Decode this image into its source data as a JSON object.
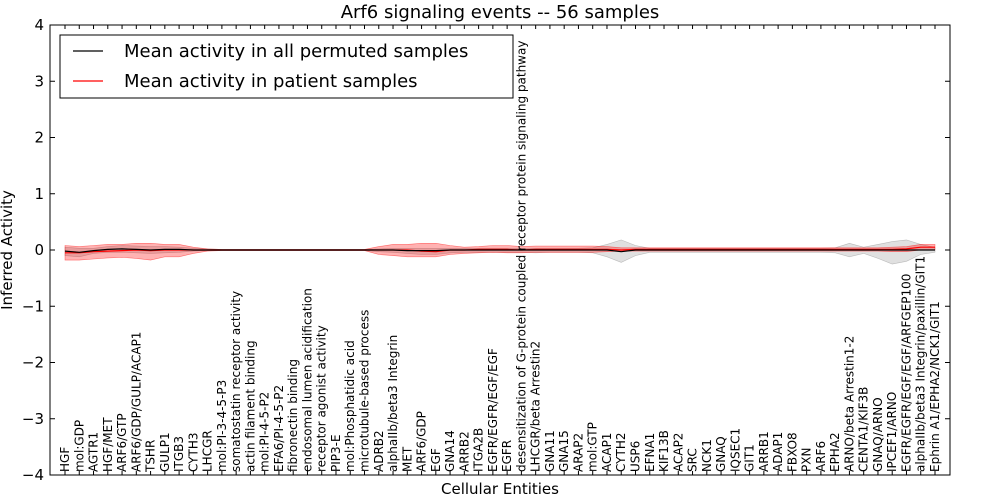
{
  "chart_data": {
    "type": "line",
    "title": "Arf6 signaling events -- 56 samples",
    "xlabel": "Cellular Entities",
    "ylabel": "Inferred Activity",
    "ylim": [
      -4,
      4
    ],
    "yticks": [
      -4,
      -3,
      -2,
      -1,
      0,
      1,
      2,
      3,
      4
    ],
    "legend_position": "top-left",
    "legend": [
      {
        "label": "Mean activity in all permuted samples",
        "color": "#000000"
      },
      {
        "label": "Mean activity in patient samples",
        "color": "#ff0000"
      }
    ],
    "categories": [
      "HGF",
      "mol:GDP",
      "AGTR1",
      "HGF/MET",
      "ARF6/GTP",
      "ARF6/GDP/GULP/ACAP1",
      "TSHR",
      "GULP1",
      "ITGB3",
      "CYTH3",
      "LHCGR",
      "mol:PI-3-4-5-P3",
      "somatostatin receptor activity",
      "actin filament binding",
      "mol:PI-4-5-P2",
      "EFA6/PI-4-5-P2",
      "fibronectin binding",
      "endosomal lumen acidification",
      "receptor agonist activity",
      "PIP3-E",
      "mol:Phosphatidic acid",
      "microtubule-based process",
      "ADRB2",
      "alphaIIb/beta3 Integrin",
      "MET",
      "ARF6/GDP",
      "EGF",
      "GNA14",
      "ARRB2",
      "ITGA2B",
      "EGFR/EGFR/EGF/EGF",
      "EGFR",
      "desensitization of G-protein coupled receptor protein signaling pathway",
      "LHCGR/beta Arrestin2",
      "GNA11",
      "GNA15",
      "ARAP2",
      "mol:GTP",
      "ACAP1",
      "CYTH2",
      "USP6",
      "EFNA1",
      "KIF13B",
      "ACAP2",
      "SRC",
      "NCK1",
      "GNAQ",
      "IQSEC1",
      "GIT1",
      "ARRB1",
      "ADAP1",
      "FBXO8",
      "PXN",
      "ARF6",
      "EPHA2",
      "ARNO/beta Arrestin1-2",
      "CENTA1/KIF3B",
      "GNAQ/ARNO",
      "IPCEF1/ARNO",
      "EGFR/EGFR/EGF/EGF/ARFGEP100",
      "alphaIIb/beta3 Integrin/paxillin/GIT1",
      "Ephrin A1/EPHA2/NCK1/GIT1"
    ],
    "series": [
      {
        "name": "Mean activity in all permuted samples",
        "color": "#000000",
        "values": [
          -0.02,
          -0.04,
          -0.01,
          0.01,
          0.02,
          0.01,
          0.0,
          0.01,
          0.01,
          0.0,
          0.0,
          0.0,
          0.0,
          0.0,
          0.0,
          0.0,
          0.0,
          0.0,
          0.0,
          0.0,
          0.0,
          0.0,
          0.0,
          0.0,
          -0.01,
          -0.01,
          -0.01,
          0.0,
          0.0,
          0.0,
          0.0,
          0.0,
          0.0,
          0.0,
          0.0,
          0.0,
          0.0,
          0.0,
          0.0,
          -0.03,
          0.0,
          0.0,
          0.0,
          0.0,
          0.0,
          0.0,
          0.0,
          0.0,
          0.0,
          0.0,
          0.0,
          0.0,
          0.0,
          0.0,
          0.0,
          0.0,
          0.0,
          0.0,
          0.0,
          0.0,
          0.0,
          0.0
        ],
        "band_upper": [
          0.05,
          0.03,
          0.03,
          0.06,
          0.08,
          0.07,
          0.06,
          0.06,
          0.05,
          0.03,
          0.02,
          0.01,
          0.01,
          0.01,
          0.01,
          0.01,
          0.01,
          0.01,
          0.01,
          0.01,
          0.01,
          0.01,
          0.02,
          0.03,
          0.03,
          0.03,
          0.03,
          0.03,
          0.03,
          0.03,
          0.03,
          0.03,
          0.03,
          0.03,
          0.03,
          0.03,
          0.03,
          0.04,
          0.1,
          0.18,
          0.08,
          0.03,
          0.03,
          0.03,
          0.03,
          0.03,
          0.03,
          0.03,
          0.03,
          0.03,
          0.03,
          0.03,
          0.03,
          0.03,
          0.04,
          0.12,
          0.05,
          0.1,
          0.15,
          0.18,
          0.1,
          0.05
        ],
        "band_lower": [
          -0.1,
          -0.12,
          -0.06,
          -0.04,
          -0.04,
          -0.05,
          -0.06,
          -0.05,
          -0.04,
          -0.02,
          -0.01,
          -0.01,
          -0.01,
          -0.01,
          -0.01,
          -0.01,
          -0.01,
          -0.01,
          -0.01,
          -0.01,
          -0.01,
          -0.01,
          -0.03,
          -0.04,
          -0.06,
          -0.08,
          -0.08,
          -0.05,
          -0.04,
          -0.04,
          -0.04,
          -0.04,
          -0.04,
          -0.05,
          -0.04,
          -0.04,
          -0.04,
          -0.05,
          -0.12,
          -0.22,
          -0.1,
          -0.04,
          -0.04,
          -0.04,
          -0.04,
          -0.04,
          -0.04,
          -0.04,
          -0.04,
          -0.04,
          -0.04,
          -0.04,
          -0.04,
          -0.04,
          -0.05,
          -0.12,
          -0.06,
          -0.15,
          -0.25,
          -0.2,
          -0.08,
          -0.04
        ]
      },
      {
        "name": "Mean activity in patient samples",
        "color": "#ff0000",
        "values": [
          -0.05,
          -0.05,
          -0.03,
          -0.02,
          -0.01,
          0.0,
          -0.01,
          0.0,
          0.0,
          0.0,
          0.0,
          0.0,
          0.0,
          0.0,
          0.0,
          0.0,
          0.0,
          0.0,
          0.0,
          0.0,
          0.0,
          0.0,
          0.0,
          0.0,
          0.0,
          -0.02,
          -0.03,
          0.0,
          0.0,
          0.01,
          0.01,
          0.01,
          0.0,
          0.01,
          0.01,
          0.01,
          0.01,
          0.01,
          0.01,
          0.0,
          0.01,
          0.01,
          0.01,
          0.01,
          0.01,
          0.01,
          0.01,
          0.01,
          0.01,
          0.01,
          0.01,
          0.01,
          0.01,
          0.01,
          0.01,
          0.01,
          0.01,
          0.01,
          0.01,
          0.02,
          0.05,
          0.05
        ],
        "band_upper": [
          0.08,
          0.06,
          0.08,
          0.1,
          0.1,
          0.12,
          0.12,
          0.1,
          0.1,
          0.05,
          0.02,
          0.01,
          0.01,
          0.01,
          0.01,
          0.01,
          0.01,
          0.01,
          0.01,
          0.01,
          0.01,
          0.01,
          0.06,
          0.1,
          0.1,
          0.12,
          0.12,
          0.08,
          0.05,
          0.06,
          0.08,
          0.08,
          0.06,
          0.07,
          0.07,
          0.07,
          0.07,
          0.07,
          0.06,
          0.04,
          0.04,
          0.04,
          0.04,
          0.04,
          0.04,
          0.04,
          0.04,
          0.04,
          0.04,
          0.04,
          0.04,
          0.04,
          0.04,
          0.04,
          0.04,
          0.04,
          0.04,
          0.04,
          0.05,
          0.06,
          0.1,
          0.1
        ],
        "band_lower": [
          -0.18,
          -0.18,
          -0.16,
          -0.14,
          -0.13,
          -0.15,
          -0.18,
          -0.12,
          -0.12,
          -0.06,
          -0.02,
          -0.01,
          -0.01,
          -0.01,
          -0.01,
          -0.01,
          -0.01,
          -0.01,
          -0.01,
          -0.01,
          -0.01,
          -0.01,
          -0.08,
          -0.1,
          -0.12,
          -0.12,
          -0.12,
          -0.08,
          -0.06,
          -0.05,
          -0.04,
          -0.05,
          -0.05,
          -0.04,
          -0.04,
          -0.04,
          -0.04,
          -0.04,
          -0.03,
          -0.02,
          -0.02,
          -0.02,
          -0.02,
          -0.02,
          -0.02,
          -0.02,
          -0.02,
          -0.02,
          -0.02,
          -0.02,
          -0.02,
          -0.02,
          -0.02,
          -0.02,
          -0.02,
          -0.02,
          -0.02,
          -0.02,
          -0.03,
          -0.03,
          0.0,
          0.0
        ]
      }
    ]
  }
}
